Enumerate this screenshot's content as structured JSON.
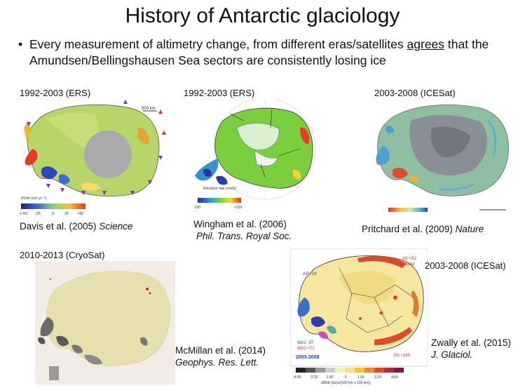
{
  "slide": {
    "title": "History of Antarctic glaciology",
    "bullet": {
      "pre": "Every measurement of altimetry change, from different eras/satellites ",
      "emph": "agrees",
      "post": " that the Amundsen/Bellingshausen Sea sectors are consistently losing ice"
    }
  },
  "panels": [
    {
      "label": "1992-2003 (ERS)",
      "cite_authors": "Davis et al. (2005) ",
      "cite_journal": "Science",
      "colorbar_title": "dS/dt (cm yr⁻¹)",
      "colorbar_ticks": [
        "<-50",
        "-25",
        "0",
        "25",
        ">50"
      ],
      "scale_text": "500 km"
    },
    {
      "label": "1992-2003 (ERS)",
      "cite_authors": "Wingham et al. (2006)",
      "cite_journal": "Phil. Trans. Royal Soc.",
      "colorbar_title": "Elevation rate (cm/yr)",
      "colorbar_ticks": [
        "-150",
        "+150"
      ]
    },
    {
      "label": "2003-2008 (ICESat)",
      "cite_authors": "Pritchard et al. (2009) ",
      "cite_journal": "Nature"
    },
    {
      "label": "2010-2013 (CryoSat)",
      "cite_authors": "McMillan et al. (2014)",
      "cite_journal": "Geophys. Res. Lett."
    },
    {
      "label": "2003-2008 (ICESat)",
      "cite_authors": "Zwally et al. (2015)",
      "cite_journal": "J. Glaciol.",
      "map_labels": {
        "all": "All +82",
        "all_unit": "Gt/yr",
        "ap": "AP -29",
        "wa1": "WA1 -97",
        "wa2": "WA2 +72",
        "ea": "EA +136",
        "years": "2003-2008"
      },
      "colorbar_ticks": [
        "-4.80",
        "-3.20",
        "-1.60",
        "0",
        "1.60",
        "3.20",
        "4.80"
      ],
      "colorbar_title": "dM/dt (Gt/yr/(100 km x 100 km))"
    }
  ],
  "colors": {
    "title": "#111111",
    "loss_blue": "#2a3fa8",
    "gain_red": "#d7302a",
    "neutral_green": "#8bcf4a",
    "neutral_yellow": "#f3e08a",
    "triangle_purple": "#7a3c9a"
  }
}
